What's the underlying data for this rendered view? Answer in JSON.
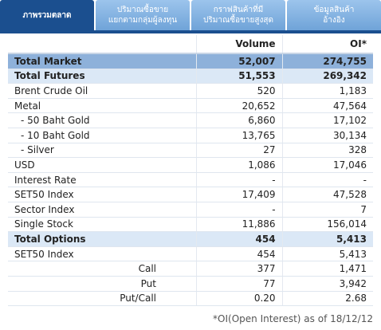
{
  "tabs": [
    [
      "ภาพรวมตลาด"
    ],
    [
      "ปริมาณซื้อขาย",
      "แยกตามกลุ่มผู้ลงทุน"
    ],
    [
      "กราฟสินค้าที่มี",
      "ปริมาณซื้อขายสูงสุด"
    ],
    [
      "ข้อมูลสินค้า",
      "อ้างอิง"
    ]
  ],
  "table": {
    "headers": [
      "Volume",
      "OI*"
    ],
    "rows": [
      [
        "Total Market",
        "52,007",
        "274,755"
      ],
      [
        "Total Futures",
        "51,553",
        "269,342"
      ],
      [
        "Brent Crude Oil",
        "520",
        "1,183"
      ],
      [
        "Metal",
        "20,652",
        "47,564"
      ],
      [
        "- 50 Baht Gold",
        "6,860",
        "17,102"
      ],
      [
        "- 10 Baht Gold",
        "13,765",
        "30,134"
      ],
      [
        "- Silver",
        "27",
        "328"
      ],
      [
        "USD",
        "1,086",
        "17,046"
      ],
      [
        "Interest Rate",
        "-",
        "-"
      ],
      [
        "SET50 Index",
        "17,409",
        "47,528"
      ],
      [
        "Sector Index",
        "-",
        "7"
      ],
      [
        "Single Stock",
        "11,886",
        "156,014"
      ],
      [
        "Total Options",
        "454",
        "5,413"
      ],
      [
        "SET50 Index",
        "454",
        "5,413"
      ],
      [
        "Call",
        "377",
        "1,471"
      ],
      [
        "Put",
        "77",
        "3,942"
      ],
      [
        "Put/Call",
        "0.20",
        "2.68"
      ]
    ]
  },
  "footnote": "*OI(Open Interest) as of 18/12/12"
}
